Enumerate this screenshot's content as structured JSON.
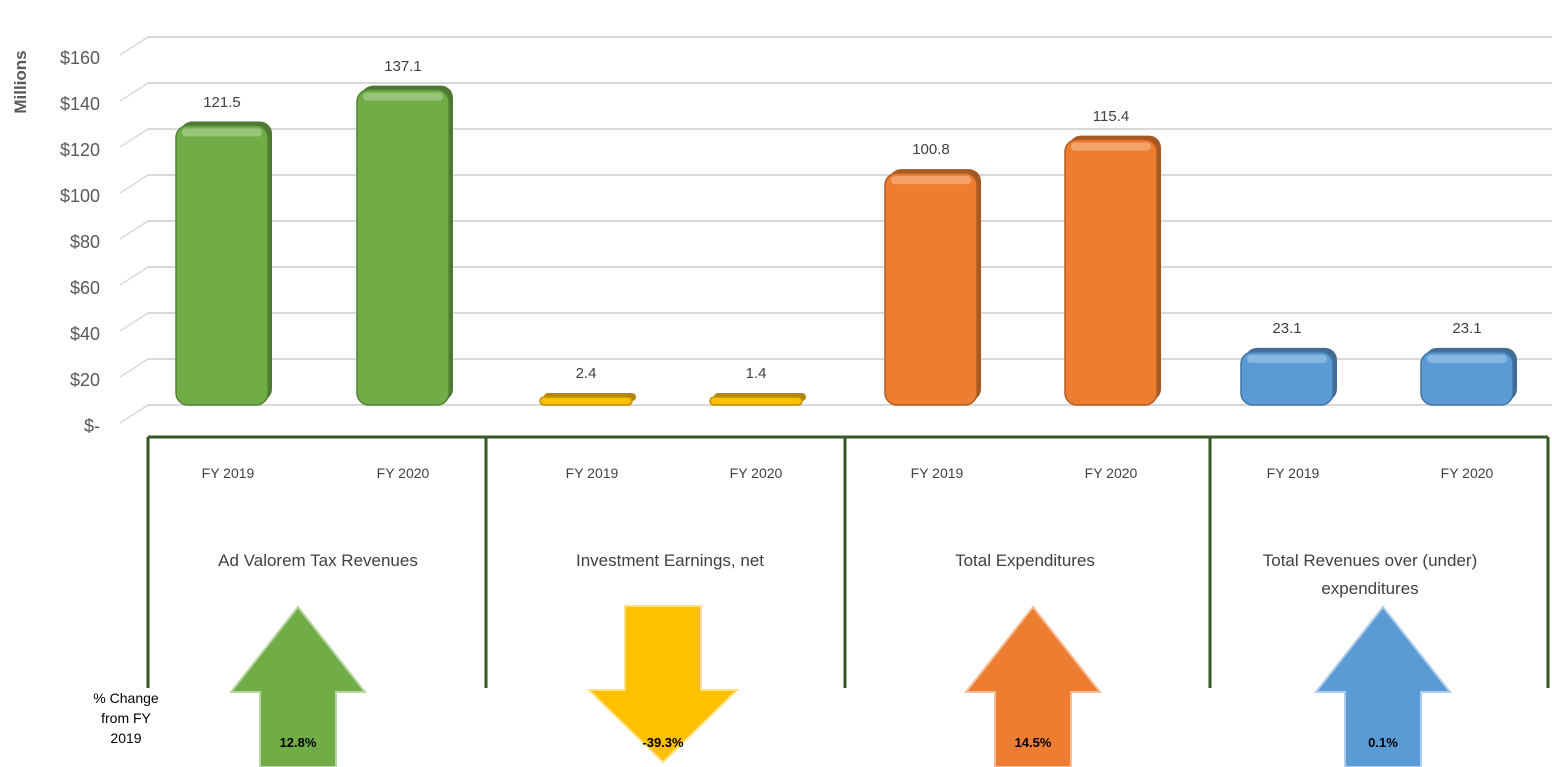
{
  "chart_data": {
    "type": "bar",
    "ylabel": "Millions",
    "ylim": [
      0,
      160
    ],
    "y_ticks": [
      "$-",
      "$20",
      "$40",
      "$60",
      "$80",
      "$100",
      "$120",
      "$140",
      "$160"
    ],
    "groups": [
      {
        "label": "Ad Valorem Tax Revenues",
        "color": "#70AD47",
        "change": "12.8%",
        "direction": "up",
        "bars": [
          {
            "x": "FY 2019",
            "value": 121.5,
            "label": "121.5"
          },
          {
            "x": "FY 2020",
            "value": 137.1,
            "label": "137.1"
          }
        ]
      },
      {
        "label": "Investment Earnings, net",
        "color": "#FFC000",
        "change": "-39.3%",
        "direction": "down",
        "bars": [
          {
            "x": "FY 2019",
            "value": 2.4,
            "label": "2.4"
          },
          {
            "x": "FY 2020",
            "value": 1.4,
            "label": "1.4"
          }
        ]
      },
      {
        "label": "Total Expenditures",
        "color": "#ED7D31",
        "change": "14.5%",
        "direction": "up",
        "bars": [
          {
            "x": "FY 2019",
            "value": 100.8,
            "label": "100.8"
          },
          {
            "x": "FY 2020",
            "value": 115.4,
            "label": "115.4"
          }
        ]
      },
      {
        "label": "Total Revenues over (under) expenditures",
        "color": "#5B9BD5",
        "change": "0.1%",
        "direction": "up",
        "bars": [
          {
            "x": "FY 2019",
            "value": 23.1,
            "label": "23.1"
          },
          {
            "x": "FY 2020",
            "value": 23.1,
            "label": "23.1"
          }
        ]
      }
    ],
    "change_title": "% Change from FY 2019"
  }
}
